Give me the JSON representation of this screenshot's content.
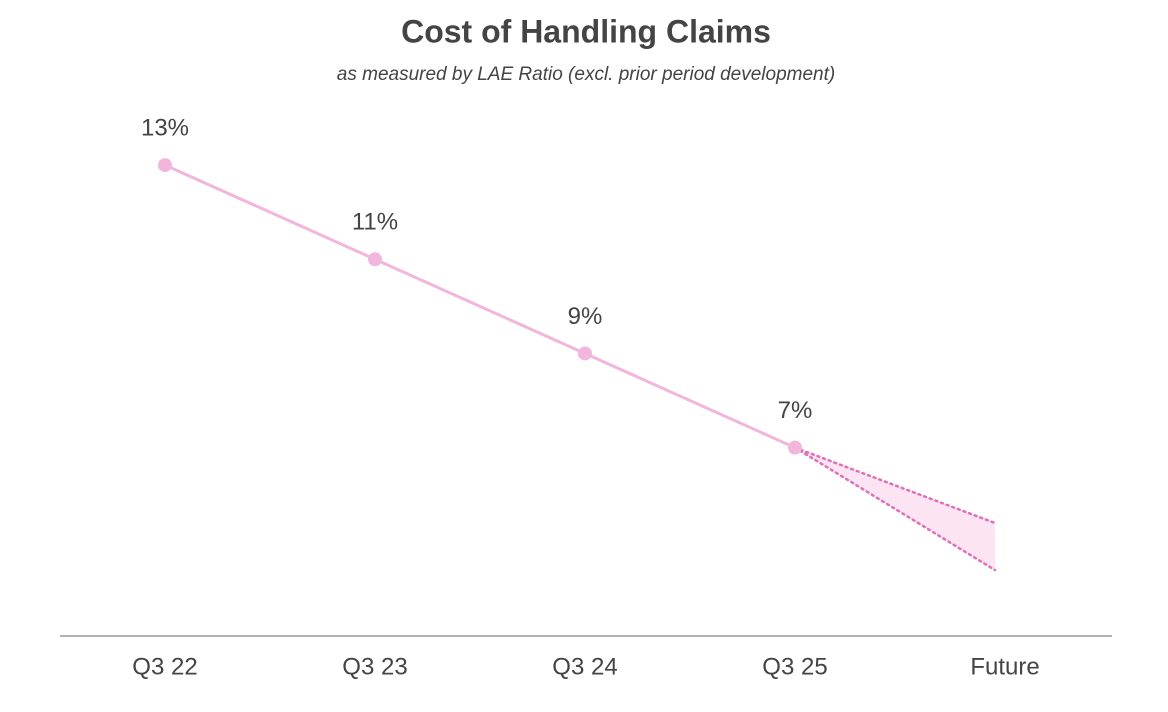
{
  "chart_data": {
    "type": "line",
    "title": "Cost of Handling Claims",
    "subtitle": "as measured by LAE Ratio (excl. prior period development)",
    "categories": [
      "Q3 22",
      "Q3 23",
      "Q3 24",
      "Q3 25",
      "Future"
    ],
    "series": [
      {
        "name": "LAE Ratio",
        "color": "#f2b6dc",
        "values": [
          13,
          11,
          9,
          7,
          null
        ],
        "value_labels": [
          "13%",
          "11%",
          "9%",
          "7%",
          null
        ]
      }
    ],
    "forecast": {
      "low": 4.4,
      "high": 5.4,
      "color": "#e070b8",
      "fill": "#fce4f2"
    },
    "ylim": [
      3,
      14
    ]
  }
}
